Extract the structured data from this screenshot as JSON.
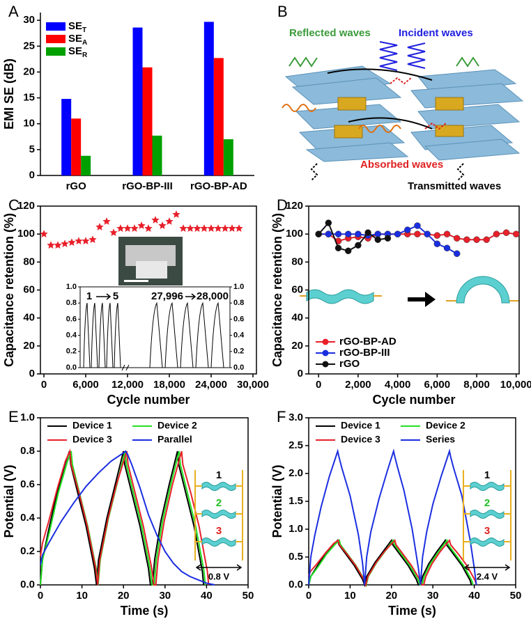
{
  "chart_data": [
    {
      "type": "bar",
      "label": "A",
      "ylabel": "EMI SE (dB)",
      "categories": [
        "rGO",
        "rGO-BP-III",
        "rGO-BP-AD"
      ],
      "series": [
        {
          "name": "SE",
          "subscript": "T",
          "color": "#0000ff",
          "values": [
            14.8,
            28.6,
            29.7
          ]
        },
        {
          "name": "SE",
          "subscript": "A",
          "color": "#ff0000",
          "values": [
            11.0,
            20.9,
            22.7
          ]
        },
        {
          "name": "SE",
          "subscript": "R",
          "color": "#00a000",
          "values": [
            3.8,
            7.7,
            7.0
          ]
        }
      ],
      "ylim": [
        0,
        31.5
      ],
      "yticks": [
        0,
        5,
        10,
        15,
        20,
        25,
        30
      ],
      "legend": "top-left"
    },
    {
      "type": "scatter",
      "label": "C",
      "marker": "star",
      "xlabel": "Cycle number",
      "ylabel": "Capacitance retention (%)",
      "series": [
        {
          "color": "#e8202a",
          "x": [
            0,
            1000,
            2000,
            3000,
            4000,
            5000,
            6000,
            7000,
            8000,
            9000,
            10000,
            11000,
            12000,
            13000,
            14000,
            15000,
            16000,
            17000,
            18000,
            19000,
            20000,
            21000,
            22000,
            23000,
            24000,
            25000,
            26000,
            27000,
            28000
          ],
          "values": [
            100,
            92,
            92,
            93,
            94,
            95,
            95,
            96,
            105,
            109,
            101,
            104,
            104,
            104,
            106,
            104,
            110,
            106,
            109,
            114,
            104,
            104,
            104,
            104,
            104,
            104,
            104,
            104,
            104
          ]
        }
      ],
      "xlim": [
        -500,
        30500
      ],
      "ylim": [
        0,
        120
      ],
      "xticks": [
        0,
        {
          "value": 6000,
          "label": "6,000"
        },
        {
          "value": 12000,
          "label": "12,000"
        },
        {
          "value": 18000,
          "label": "18,000"
        },
        {
          "value": 24000,
          "label": "24,000"
        },
        {
          "value": 30000,
          "label": "30,000"
        }
      ],
      "yticks": [
        0,
        20,
        40,
        60,
        80,
        100,
        120
      ],
      "inset": {
        "ylim": [
          0,
          1
        ],
        "peak": 0.8,
        "yticks": [
          {
            "value": 0,
            "label": "0.0"
          },
          {
            "value": 0.2,
            "label": "0.2"
          },
          {
            "value": 0.4,
            "label": "0.4"
          },
          {
            "value": 0.6,
            "label": "0.6"
          },
          {
            "value": 0.8,
            "label": "0.8"
          },
          {
            "value": 1,
            "label": "1.0"
          }
        ],
        "annotations": [
          "1",
          "5",
          "27,996",
          "28,000"
        ]
      }
    },
    {
      "type": "line",
      "label": "D",
      "marker": "circle",
      "xlabel": "Cycle number",
      "ylabel": "Capacitance retention (%)",
      "legend": "bottom-left",
      "series": [
        {
          "name": "rGO-BP-AD",
          "color": "#e8202a",
          "x": [
            0,
            500,
            1000,
            1500,
            2000,
            2500,
            3000,
            3500,
            4000,
            4500,
            5000,
            5500,
            6000,
            6500,
            7000,
            7500,
            8000,
            8500,
            9000,
            9500,
            10000
          ],
          "values": [
            100,
            100,
            95,
            97,
            98,
            97,
            100,
            100,
            100,
            100,
            100,
            100,
            99,
            100,
            97,
            96,
            96,
            96,
            100,
            101,
            100
          ]
        },
        {
          "name": "rGO-BP-III",
          "color": "#1a2ee0",
          "x": [
            0,
            500,
            1000,
            1500,
            2000,
            2500,
            3000,
            3500,
            4000,
            4500,
            5000,
            5500,
            6000,
            6500,
            7000
          ],
          "values": [
            100,
            100,
            100,
            100,
            100,
            99,
            100,
            100,
            100,
            103,
            106,
            100,
            93,
            90,
            86
          ]
        },
        {
          "name": "rGO",
          "color": "#111111",
          "x": [
            0,
            500,
            1000,
            1500,
            2000,
            2500,
            3000,
            3500
          ],
          "values": [
            100,
            108,
            90,
            88,
            92,
            101,
            96,
            97
          ]
        }
      ],
      "xlim": [
        -500,
        10150
      ],
      "ylim": [
        0,
        120
      ],
      "xticks": [
        0,
        {
          "value": 2000,
          "label": "2,000"
        },
        {
          "value": 4000,
          "label": "4,000"
        },
        {
          "value": 6000,
          "label": "6,000"
        },
        {
          "value": 8000,
          "label": "8,000"
        },
        {
          "value": 10000,
          "label": "10,000"
        }
      ],
      "yticks": [
        0,
        20,
        40,
        60,
        80,
        100,
        120
      ]
    },
    {
      "type": "line",
      "label": "E",
      "xlabel": "Time (s)",
      "ylabel": "Potential (V)",
      "legend": "top-left",
      "series": [
        {
          "name": "Device  1",
          "color": "#000000",
          "x": [
            0,
            0.5,
            2,
            4,
            6,
            7,
            7.3,
            9,
            11,
            13,
            13.5,
            14,
            16,
            18,
            20,
            20.3,
            22,
            24,
            26,
            26.5,
            27,
            27.5,
            29,
            31,
            33,
            33.3,
            35,
            37,
            39,
            39.3
          ],
          "values": [
            0,
            0.15,
            0.33,
            0.55,
            0.73,
            0.8,
            0.72,
            0.55,
            0.35,
            0.1,
            0,
            0.15,
            0.4,
            0.6,
            0.8,
            0.72,
            0.55,
            0.35,
            0.1,
            0,
            0,
            0.15,
            0.38,
            0.6,
            0.8,
            0.72,
            0.55,
            0.35,
            0.08,
            0
          ]
        },
        {
          "name": "Device  2",
          "color": "#22e022",
          "x": [
            0,
            0.5,
            2.3,
            4.3,
            6.4,
            7.4,
            7.7,
            9.4,
            11.4,
            13.4,
            13.9,
            14.4,
            16.4,
            18.4,
            20.4,
            20.7,
            22.4,
            24.4,
            26.4,
            26.9,
            27.4,
            27.9,
            29.4,
            31.4,
            33.4,
            33.7,
            35.4,
            37.4,
            39.4,
            39.7
          ],
          "values": [
            0,
            0.15,
            0.33,
            0.55,
            0.73,
            0.8,
            0.72,
            0.55,
            0.35,
            0.1,
            0,
            0.15,
            0.4,
            0.6,
            0.8,
            0.72,
            0.55,
            0.35,
            0.1,
            0,
            0,
            0.15,
            0.38,
            0.6,
            0.8,
            0.72,
            0.55,
            0.35,
            0.08,
            0
          ]
        },
        {
          "name": "Device  3",
          "color": "#e8202a",
          "x": [
            0,
            0.5,
            2,
            4,
            6,
            7.1,
            7.4,
            9.3,
            11.3,
            13.3,
            13.8,
            14.3,
            16.3,
            18.3,
            20.8,
            21.1,
            22.8,
            24.8,
            26.8,
            27.3,
            27.8,
            28.3,
            29.8,
            31.8,
            34,
            34.3,
            36.2,
            38.2,
            40.2,
            40.5
          ],
          "values": [
            0.17,
            0.25,
            0.38,
            0.57,
            0.74,
            0.8,
            0.72,
            0.55,
            0.35,
            0.1,
            0,
            0.15,
            0.4,
            0.6,
            0.8,
            0.72,
            0.55,
            0.35,
            0.1,
            0,
            0,
            0.15,
            0.38,
            0.6,
            0.8,
            0.72,
            0.55,
            0.35,
            0.08,
            0
          ]
        },
        {
          "name": "Parallel",
          "color": "#1a2ee0",
          "x": [
            0,
            0.5,
            2,
            5,
            8,
            11,
            14,
            17,
            20,
            20.5,
            21,
            22,
            24,
            26,
            28,
            30,
            32,
            34,
            36,
            38,
            40,
            42
          ],
          "values": [
            0.12,
            0.18,
            0.25,
            0.38,
            0.49,
            0.59,
            0.67,
            0.74,
            0.79,
            0.8,
            0.78,
            0.72,
            0.58,
            0.42,
            0.3,
            0.2,
            0.13,
            0.08,
            0.05,
            0.03,
            0.01,
            0
          ]
        }
      ],
      "xlim": [
        0,
        50
      ],
      "ylim": [
        0,
        1
      ],
      "xticks": [
        0,
        10,
        20,
        30,
        40,
        50
      ],
      "yticks": [
        {
          "value": 0,
          "label": "0.0"
        },
        {
          "value": 0.2,
          "label": "0.2"
        },
        {
          "value": 0.4,
          "label": "0.4"
        },
        {
          "value": 0.6,
          "label": "0.6"
        },
        {
          "value": 0.8,
          "label": "0.8"
        },
        {
          "value": 1,
          "label": "1.0"
        }
      ],
      "device_labels": [
        "1",
        "2",
        "3"
      ],
      "voltage": "0.8 V"
    },
    {
      "type": "line",
      "label": "F",
      "xlabel": "Time (s)",
      "ylabel": "Potential (V)",
      "legend": "top-left",
      "series": [
        {
          "name": "Device  1",
          "color": "#000000",
          "x": [
            0,
            0.5,
            2,
            4,
            6,
            7,
            7.3,
            9,
            11,
            13,
            13.5,
            14,
            16,
            18,
            20,
            20.3,
            22,
            24,
            26,
            26.5,
            27,
            27.5,
            29,
            31,
            33,
            33.3,
            35,
            37,
            39,
            39.3
          ],
          "values": [
            0,
            0.15,
            0.33,
            0.55,
            0.73,
            0.8,
            0.72,
            0.55,
            0.35,
            0.1,
            0,
            0.15,
            0.4,
            0.6,
            0.8,
            0.72,
            0.55,
            0.35,
            0.1,
            0,
            0,
            0.15,
            0.38,
            0.6,
            0.8,
            0.72,
            0.55,
            0.35,
            0.08,
            0
          ]
        },
        {
          "name": "Device  2",
          "color": "#22e022",
          "x": [
            0,
            0.5,
            2.3,
            4.3,
            6.4,
            7.4,
            7.7,
            9.4,
            11.4,
            13.4,
            13.9,
            14.4,
            16.4,
            18.4,
            20.4,
            20.7,
            22.4,
            24.4,
            26.4,
            26.9,
            27.4,
            27.9,
            29.4,
            31.4,
            33.4,
            33.7,
            35.4,
            37.4,
            39.4,
            39.7
          ],
          "values": [
            0,
            0.15,
            0.33,
            0.55,
            0.73,
            0.8,
            0.72,
            0.55,
            0.35,
            0.1,
            0,
            0.15,
            0.4,
            0.6,
            0.8,
            0.72,
            0.55,
            0.35,
            0.1,
            0,
            0,
            0.15,
            0.38,
            0.6,
            0.8,
            0.72,
            0.55,
            0.35,
            0.08,
            0
          ]
        },
        {
          "name": "Device  3",
          "color": "#e8202a",
          "x": [
            0,
            0.5,
            2,
            4,
            6,
            7.1,
            7.4,
            9.3,
            11.3,
            13.3,
            13.8,
            14.3,
            16.3,
            18.3,
            20.8,
            21.1,
            22.8,
            24.8,
            26.8,
            27.3,
            27.8,
            28.3,
            29.8,
            31.8,
            34,
            34.3,
            36.2,
            38.2,
            40.2,
            40.5
          ],
          "values": [
            0.17,
            0.25,
            0.38,
            0.57,
            0.74,
            0.8,
            0.72,
            0.55,
            0.35,
            0.1,
            0,
            0.15,
            0.4,
            0.6,
            0.8,
            0.72,
            0.55,
            0.35,
            0.1,
            0,
            0,
            0.15,
            0.38,
            0.6,
            0.8,
            0.72,
            0.55,
            0.35,
            0.08,
            0
          ]
        },
        {
          "name": "Series",
          "color": "#1a2ee0",
          "x": [
            0,
            0.5,
            1.5,
            3,
            5,
            7,
            7.3,
            8,
            10,
            12,
            13,
            13.5,
            14,
            15,
            17,
            19,
            20.5,
            20.8,
            21.5,
            23,
            25,
            26.5,
            27,
            27.5,
            28.5,
            30,
            32,
            34,
            34.3,
            35,
            37,
            39,
            40,
            40.5
          ],
          "values": [
            0,
            0.5,
            0.9,
            1.4,
            1.95,
            2.4,
            2.3,
            2.1,
            1.6,
            0.9,
            0.4,
            0,
            0.5,
            0.95,
            1.55,
            2.05,
            2.4,
            2.3,
            2.1,
            1.7,
            1.0,
            0.3,
            0,
            0.5,
            0.95,
            1.45,
            1.95,
            2.4,
            2.3,
            2.1,
            1.6,
            0.8,
            0.3,
            0
          ]
        }
      ],
      "xlim": [
        0,
        50
      ],
      "ylim": [
        0,
        3
      ],
      "xticks": [
        0,
        10,
        20,
        30,
        40,
        50
      ],
      "yticks": [
        {
          "value": 0,
          "label": "0.0"
        },
        {
          "value": 0.5,
          "label": "0.5"
        },
        {
          "value": 1,
          "label": "1.0"
        },
        {
          "value": 1.5,
          "label": "1.5"
        },
        {
          "value": 2,
          "label": "2.0"
        },
        {
          "value": 2.5,
          "label": "2.5"
        },
        {
          "value": 3,
          "label": "3.0"
        }
      ],
      "device_labels": [
        "1",
        "2",
        "3"
      ],
      "voltage": "2.4 V"
    }
  ],
  "diagram": {
    "label": "B",
    "labels": [
      "Reflected waves",
      "Incident waves",
      "Absorbed waves",
      "Transmitted waves"
    ]
  }
}
